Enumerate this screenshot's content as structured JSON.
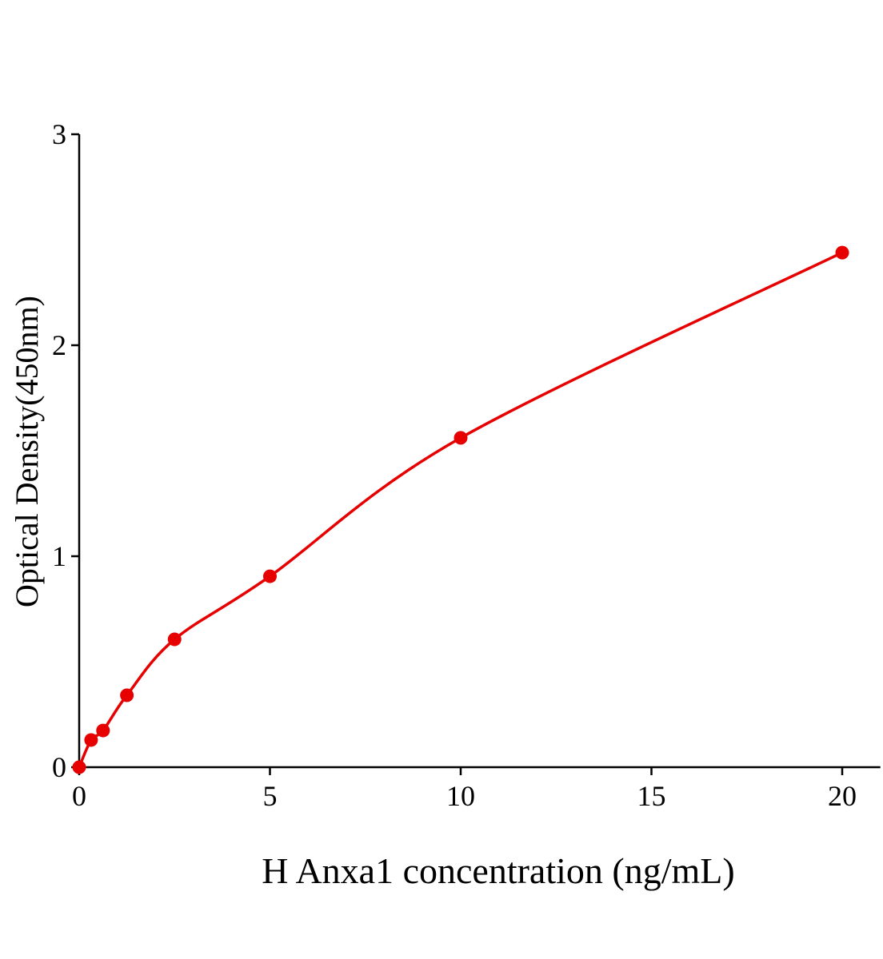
{
  "chart_data": {
    "type": "scatter",
    "title": "",
    "xlabel": "H Anxa1 concentration (ng/mL)",
    "ylabel": "Optical Density(450nm)",
    "xlim": [
      0,
      21
    ],
    "ylim": [
      0,
      3
    ],
    "xticks": [
      0,
      5,
      10,
      15,
      20
    ],
    "yticks": [
      0,
      1,
      2,
      3
    ],
    "grid": false,
    "legend": "none",
    "series": [
      {
        "x": [
          0,
          0.3125,
          0.625,
          1.25,
          2.5,
          5,
          10,
          20
        ],
        "y": [
          0.0,
          0.129,
          0.174,
          0.341,
          0.606,
          0.905,
          1.561,
          2.439
        ],
        "color": "#e60000",
        "fit_curve": true
      }
    ]
  }
}
